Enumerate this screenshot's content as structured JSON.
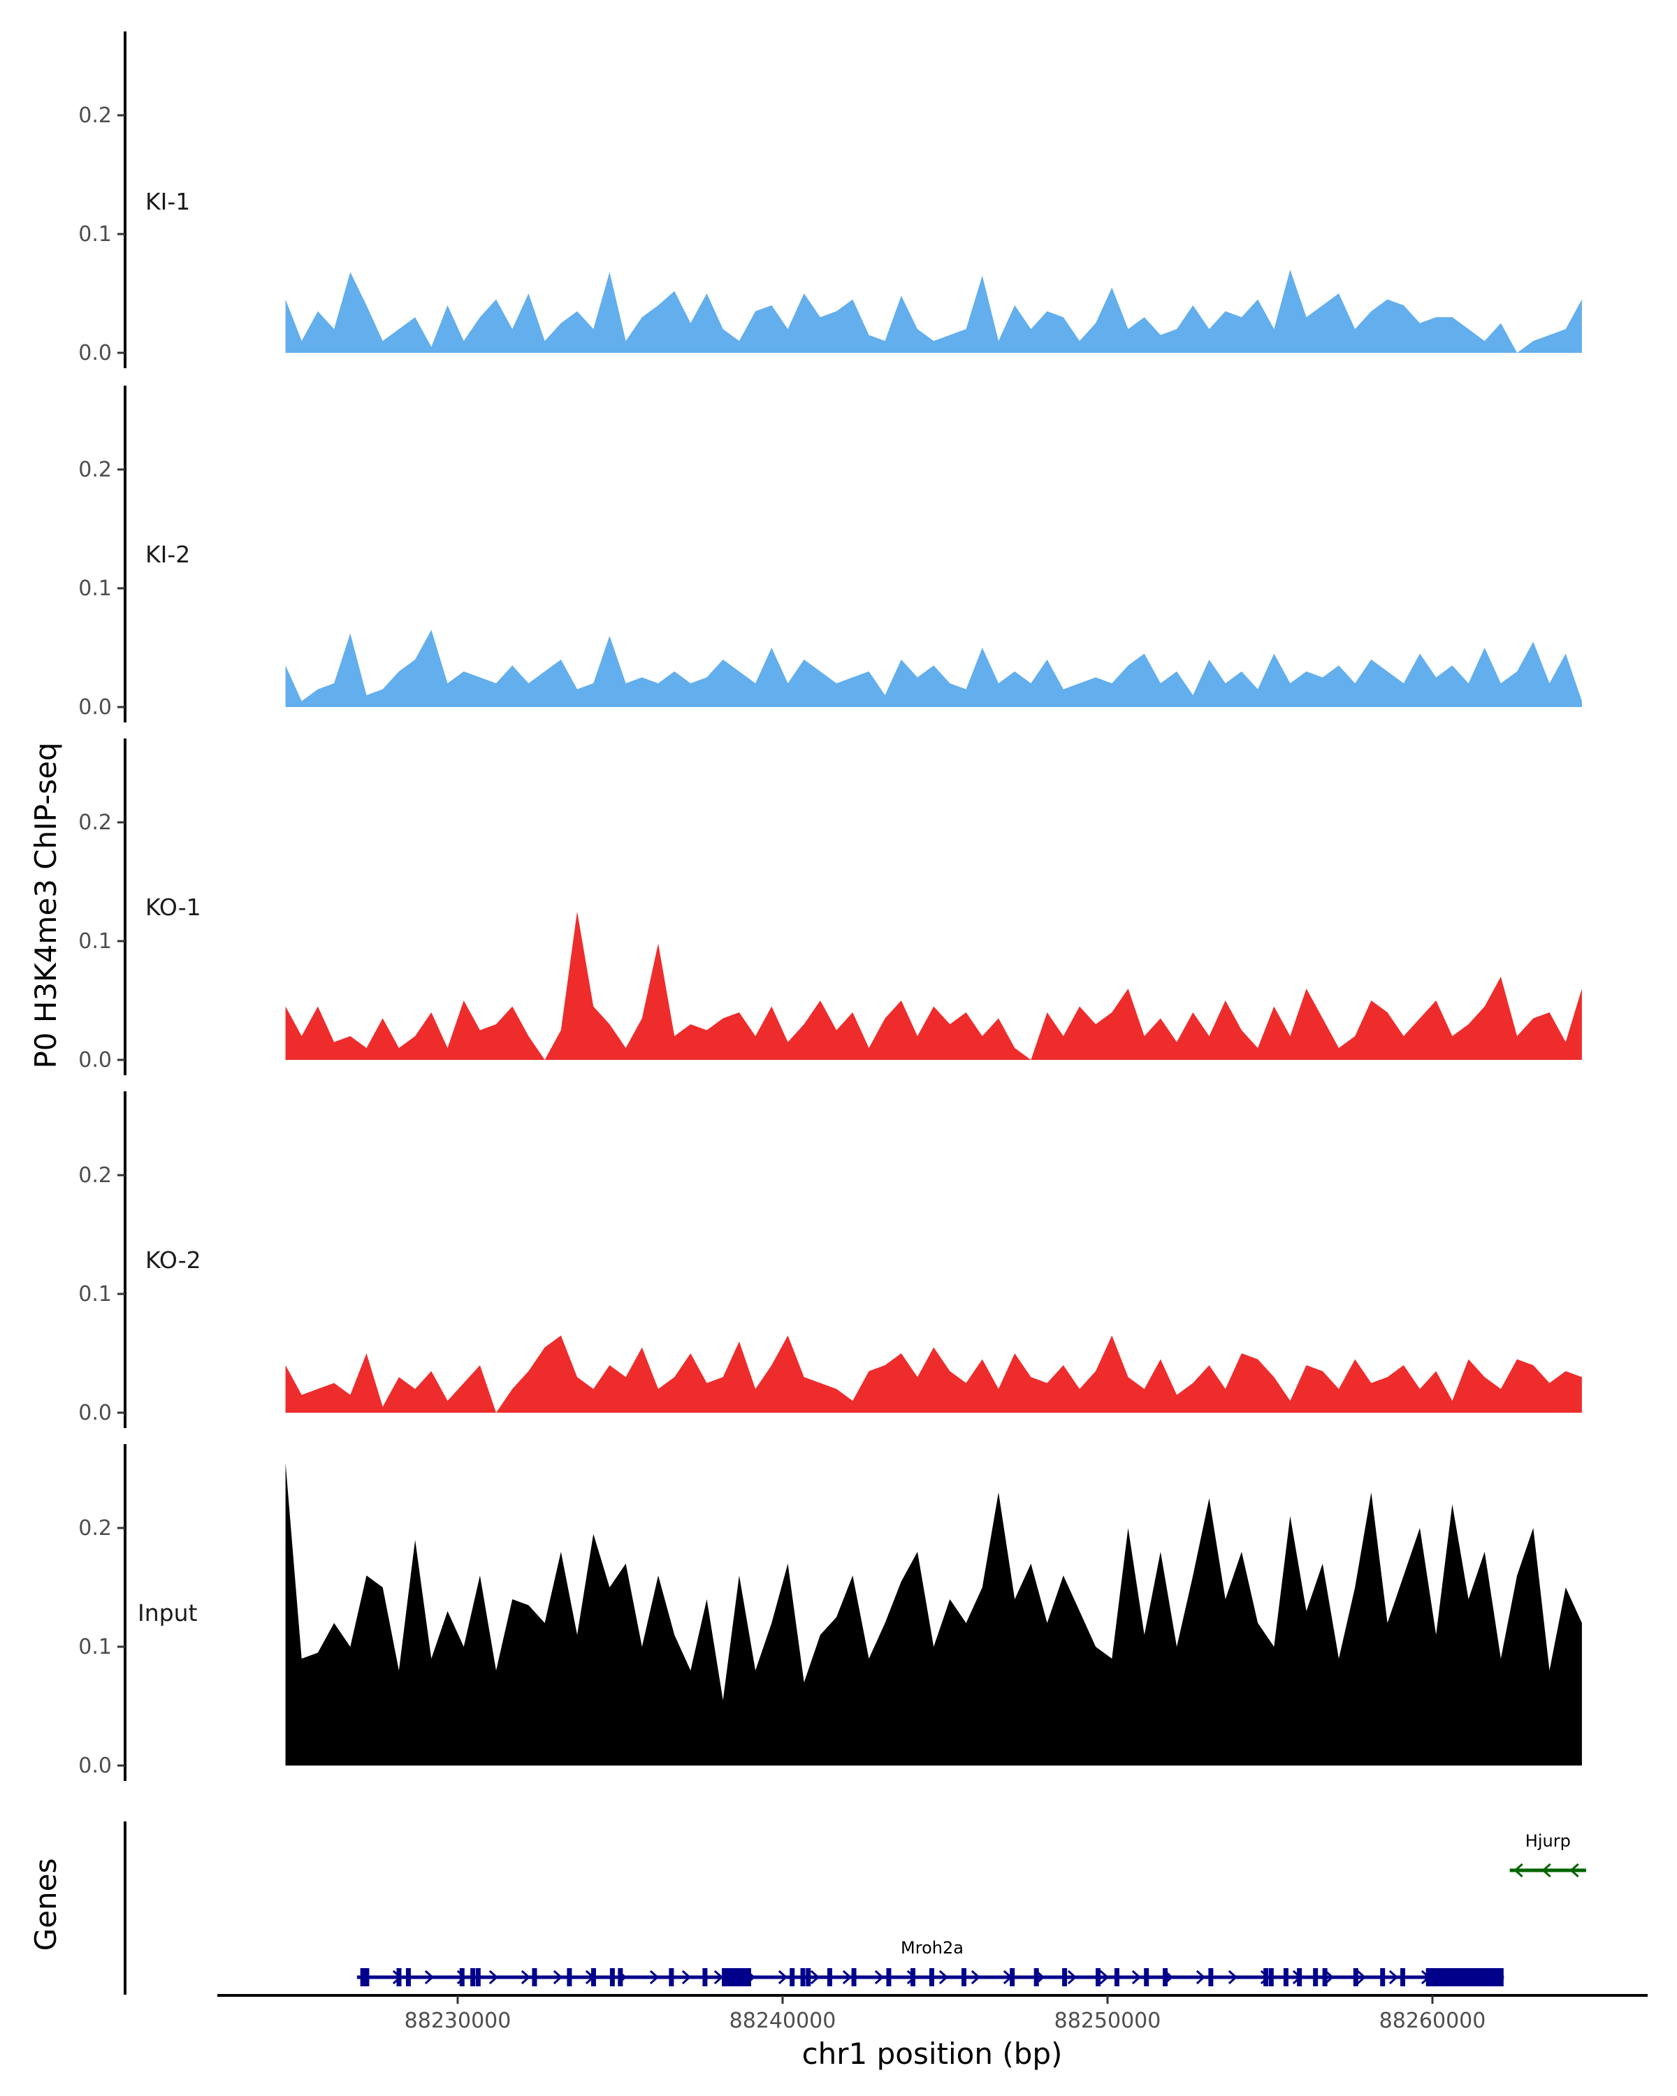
{
  "chart_data": {
    "type": "area",
    "ylabel": "P0 H3K4me3 ChIP-seq",
    "xlabel": "chr1 position (bp)",
    "xlim": [
      88224700,
      88264600
    ],
    "x_ticks": [
      88230000,
      88240000,
      88250000,
      88260000
    ],
    "x_tick_labels": [
      "88230000",
      "88240000",
      "88250000",
      "88260000"
    ],
    "ylim": [
      0,
      0.27
    ],
    "y_ticks": [
      0.0,
      0.1,
      0.2
    ],
    "y_tick_labels": [
      "0.0",
      "0.1",
      "0.2"
    ],
    "grid": false,
    "tracks": [
      {
        "name": "KI-1",
        "color": "#63aeec",
        "values": [
          0.045,
          0.01,
          0.035,
          0.02,
          0.068,
          0.04,
          0.01,
          0.02,
          0.03,
          0.005,
          0.04,
          0.01,
          0.03,
          0.045,
          0.02,
          0.05,
          0.01,
          0.025,
          0.035,
          0.02,
          0.068,
          0.01,
          0.03,
          0.04,
          0.052,
          0.025,
          0.05,
          0.02,
          0.01,
          0.035,
          0.04,
          0.02,
          0.05,
          0.03,
          0.035,
          0.045,
          0.015,
          0.01,
          0.048,
          0.02,
          0.01,
          0.015,
          0.02,
          0.065,
          0.01,
          0.04,
          0.02,
          0.035,
          0.03,
          0.01,
          0.025,
          0.055,
          0.02,
          0.03,
          0.015,
          0.02,
          0.04,
          0.02,
          0.035,
          0.03,
          0.045,
          0.02,
          0.07,
          0.03,
          0.04,
          0.05,
          0.02,
          0.035,
          0.045,
          0.04,
          0.025,
          0.03,
          0.03,
          0.02,
          0.01,
          0.025,
          0.0,
          0.01,
          0.015,
          0.02,
          0.045
        ]
      },
      {
        "name": "KI-2",
        "color": "#63aeec",
        "values": [
          0.035,
          0.005,
          0.015,
          0.02,
          0.062,
          0.01,
          0.015,
          0.03,
          0.04,
          0.065,
          0.02,
          0.03,
          0.025,
          0.02,
          0.035,
          0.02,
          0.03,
          0.04,
          0.015,
          0.02,
          0.06,
          0.02,
          0.025,
          0.02,
          0.03,
          0.02,
          0.025,
          0.04,
          0.03,
          0.02,
          0.05,
          0.02,
          0.04,
          0.03,
          0.02,
          0.025,
          0.03,
          0.01,
          0.04,
          0.025,
          0.035,
          0.02,
          0.015,
          0.05,
          0.02,
          0.03,
          0.02,
          0.04,
          0.015,
          0.02,
          0.025,
          0.02,
          0.035,
          0.045,
          0.02,
          0.03,
          0.01,
          0.04,
          0.02,
          0.03,
          0.015,
          0.045,
          0.02,
          0.03,
          0.025,
          0.035,
          0.02,
          0.04,
          0.03,
          0.02,
          0.045,
          0.025,
          0.035,
          0.02,
          0.05,
          0.02,
          0.03,
          0.055,
          0.02,
          0.045,
          0.005
        ]
      },
      {
        "name": "KO-1",
        "color": "#ee2c2c",
        "values": [
          0.045,
          0.02,
          0.045,
          0.015,
          0.02,
          0.01,
          0.035,
          0.01,
          0.02,
          0.04,
          0.01,
          0.05,
          0.025,
          0.03,
          0.045,
          0.02,
          0.0,
          0.025,
          0.125,
          0.045,
          0.03,
          0.01,
          0.035,
          0.098,
          0.02,
          0.03,
          0.025,
          0.035,
          0.04,
          0.02,
          0.045,
          0.015,
          0.03,
          0.05,
          0.025,
          0.04,
          0.01,
          0.035,
          0.05,
          0.02,
          0.045,
          0.03,
          0.04,
          0.02,
          0.035,
          0.01,
          0.0,
          0.04,
          0.02,
          0.045,
          0.03,
          0.04,
          0.06,
          0.02,
          0.035,
          0.015,
          0.04,
          0.02,
          0.05,
          0.025,
          0.01,
          0.045,
          0.02,
          0.06,
          0.035,
          0.01,
          0.02,
          0.05,
          0.04,
          0.02,
          0.035,
          0.05,
          0.02,
          0.03,
          0.045,
          0.07,
          0.02,
          0.035,
          0.04,
          0.015,
          0.06
        ]
      },
      {
        "name": "KO-2",
        "color": "#ee2c2c",
        "values": [
          0.04,
          0.015,
          0.02,
          0.025,
          0.015,
          0.05,
          0.005,
          0.03,
          0.02,
          0.035,
          0.01,
          0.025,
          0.04,
          0.0,
          0.02,
          0.035,
          0.055,
          0.065,
          0.03,
          0.02,
          0.04,
          0.03,
          0.055,
          0.02,
          0.03,
          0.05,
          0.025,
          0.03,
          0.06,
          0.02,
          0.04,
          0.065,
          0.03,
          0.025,
          0.02,
          0.01,
          0.035,
          0.04,
          0.05,
          0.03,
          0.055,
          0.035,
          0.025,
          0.045,
          0.02,
          0.05,
          0.03,
          0.025,
          0.04,
          0.02,
          0.035,
          0.065,
          0.03,
          0.02,
          0.045,
          0.015,
          0.025,
          0.04,
          0.02,
          0.05,
          0.045,
          0.03,
          0.01,
          0.04,
          0.035,
          0.02,
          0.045,
          0.025,
          0.03,
          0.04,
          0.02,
          0.035,
          0.01,
          0.045,
          0.03,
          0.02,
          0.045,
          0.04,
          0.025,
          0.035,
          0.03
        ]
      },
      {
        "name": "Input",
        "color": "#000000",
        "values": [
          0.255,
          0.09,
          0.095,
          0.12,
          0.1,
          0.16,
          0.15,
          0.08,
          0.19,
          0.09,
          0.13,
          0.1,
          0.16,
          0.08,
          0.14,
          0.135,
          0.12,
          0.18,
          0.11,
          0.195,
          0.15,
          0.17,
          0.1,
          0.16,
          0.11,
          0.08,
          0.14,
          0.055,
          0.16,
          0.08,
          0.12,
          0.17,
          0.07,
          0.11,
          0.125,
          0.16,
          0.09,
          0.12,
          0.155,
          0.18,
          0.1,
          0.14,
          0.12,
          0.15,
          0.23,
          0.14,
          0.17,
          0.12,
          0.16,
          0.13,
          0.1,
          0.09,
          0.2,
          0.11,
          0.18,
          0.1,
          0.16,
          0.225,
          0.14,
          0.18,
          0.12,
          0.1,
          0.21,
          0.13,
          0.17,
          0.09,
          0.15,
          0.23,
          0.12,
          0.16,
          0.2,
          0.11,
          0.22,
          0.14,
          0.18,
          0.09,
          0.16,
          0.2,
          0.08,
          0.15,
          0.12
        ]
      }
    ],
    "genes": [
      {
        "name": "Mroh2a",
        "strand": "+",
        "color": "#00008b",
        "start": 88226900,
        "end": 88262200,
        "exons": [
          88227068,
          88227192,
          88228183,
          88228472,
          88230124,
          88230454,
          88230620,
          88232354,
          88233428,
          88234171,
          88234750,
          88234997,
          88236567,
          88237600,
          88240284,
          88240614,
          88240780,
          88241440,
          88242184,
          88243257,
          88244000,
          88244579,
          88245570,
          88247057,
          88247800,
          88248668,
          88249700,
          88250278,
          88251187,
          88251765,
          88253169,
          88254863,
          88255028,
          88255482,
          88255895,
          88256390,
          88256680,
          88257630,
          88258456,
          88259075
        ],
        "blocks": [
          [
            88238130,
            88239030
          ],
          [
            88259800,
            88262190
          ]
        ]
      },
      {
        "name": "Hjurp",
        "strand": "-",
        "color": "#006400",
        "start": 88262380,
        "end": 88264730,
        "exons": [],
        "blocks": []
      }
    ],
    "genes_label": "Genes"
  }
}
